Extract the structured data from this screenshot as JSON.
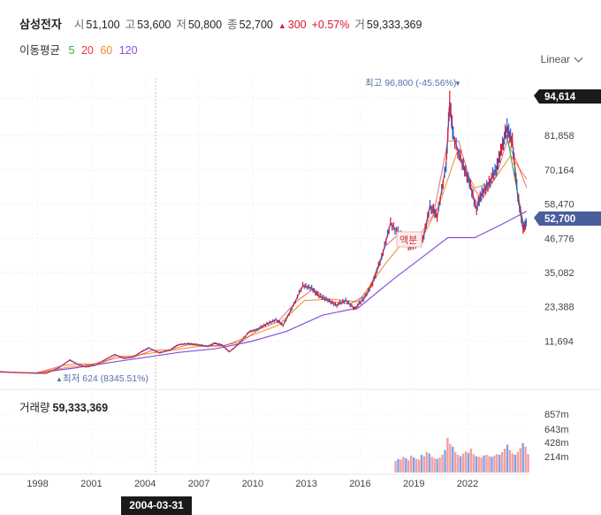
{
  "header": {
    "title": "삼성전자",
    "open_label": "시",
    "open_value": "51,100",
    "high_label": "고",
    "high_value": "53,600",
    "low_label": "저",
    "low_value": "50,800",
    "close_label": "종",
    "close_value": "52,700",
    "change_value": "300",
    "change_pct": "+0.57%",
    "volume_label": "거",
    "volume_value": "59,333,369"
  },
  "moving_average": {
    "title": "이동평균",
    "periods": [
      {
        "label": "5",
        "color": "#2fae4a"
      },
      {
        "label": "20",
        "color": "#e8383d"
      },
      {
        "label": "60",
        "color": "#f08a24"
      },
      {
        "label": "120",
        "color": "#8a4fe0"
      }
    ]
  },
  "scale_button": {
    "label": "Linear"
  },
  "annotations": {
    "max_label": "최고 96,800 (-45.56%)",
    "min_label": "최저 624 (8345.51%)",
    "event_label": "액분"
  },
  "price_tags": {
    "top": "94,614",
    "current": "52,700"
  },
  "volume_panel": {
    "label": "거래량",
    "value": "59,333,369"
  },
  "crosshair_date": "2004-03-31",
  "colors": {
    "up": "#e0142b",
    "down": "#1f63d6",
    "accent_tag": "#4a5e9c",
    "dark_tag": "#1a1a1a"
  },
  "chart_data": {
    "type": "line",
    "price_axis": {
      "ticks": [
        "81,858",
        "70,164",
        "58,470",
        "46,776",
        "35,082",
        "23,388",
        "11,694"
      ],
      "ylim": [
        0,
        100000
      ]
    },
    "volume_axis": {
      "ticks": [
        "857m",
        "643m",
        "428m",
        "214m"
      ]
    },
    "x_ticks": [
      "1998",
      "2001",
      "2004",
      "2007",
      "2010",
      "2013",
      "2016",
      "2019",
      "2022"
    ],
    "x_range": [
      1996.0,
      2025.6
    ],
    "series": [
      {
        "key": "price",
        "points": [
          [
            1996.0,
            1200
          ],
          [
            1997.0,
            900
          ],
          [
            1998.0,
            640
          ],
          [
            1998.6,
            700
          ],
          [
            1999.3,
            2600
          ],
          [
            1999.9,
            5200
          ],
          [
            2000.3,
            3800
          ],
          [
            2000.8,
            2800
          ],
          [
            2001.3,
            3400
          ],
          [
            2001.9,
            5400
          ],
          [
            2002.4,
            7100
          ],
          [
            2002.9,
            5700
          ],
          [
            2003.4,
            6100
          ],
          [
            2003.9,
            8000
          ],
          [
            2004.3,
            9300
          ],
          [
            2004.9,
            7600
          ],
          [
            2005.5,
            8600
          ],
          [
            2005.9,
            10300
          ],
          [
            2006.5,
            10800
          ],
          [
            2007.0,
            10500
          ],
          [
            2007.6,
            9800
          ],
          [
            2008.0,
            11000
          ],
          [
            2008.4,
            10200
          ],
          [
            2008.8,
            8000
          ],
          [
            2009.3,
            10500
          ],
          [
            2009.9,
            14800
          ],
          [
            2010.4,
            15800
          ],
          [
            2010.9,
            17500
          ],
          [
            2011.4,
            19000
          ],
          [
            2011.8,
            17000
          ],
          [
            2012.3,
            23000
          ],
          [
            2012.9,
            30500
          ],
          [
            2013.4,
            29800
          ],
          [
            2013.8,
            27000
          ],
          [
            2014.3,
            25600
          ],
          [
            2014.8,
            24000
          ],
          [
            2015.3,
            25500
          ],
          [
            2015.8,
            22800
          ],
          [
            2016.3,
            26000
          ],
          [
            2016.8,
            31500
          ],
          [
            2017.3,
            40000
          ],
          [
            2017.8,
            52000
          ],
          [
            2018.3,
            48000
          ],
          [
            2018.8,
            44000
          ],
          [
            2019.2,
            45000
          ],
          [
            2019.6,
            46000
          ],
          [
            2020.0,
            58000
          ],
          [
            2020.4,
            54000
          ],
          [
            2020.9,
            72000
          ],
          [
            2021.1,
            93000
          ],
          [
            2021.3,
            82000
          ],
          [
            2021.8,
            72000
          ],
          [
            2022.2,
            66000
          ],
          [
            2022.6,
            57000
          ],
          [
            2022.9,
            62000
          ],
          [
            2023.3,
            66000
          ],
          [
            2023.7,
            70000
          ],
          [
            2024.0,
            78000
          ],
          [
            2024.3,
            84000
          ],
          [
            2024.6,
            80000
          ],
          [
            2024.9,
            61000
          ],
          [
            2025.2,
            50000
          ],
          [
            2025.4,
            52700
          ]
        ]
      },
      {
        "key": "ma5",
        "points": [
          [
            2024.3,
            82000
          ],
          [
            2024.6,
            72000
          ],
          [
            2024.9,
            62000
          ],
          [
            2025.2,
            52000
          ],
          [
            2025.4,
            51500
          ]
        ]
      },
      {
        "key": "ma20",
        "points": [
          [
            1996.0,
            1150
          ],
          [
            1998.0,
            700
          ],
          [
            1999.5,
            3300
          ],
          [
            2000.5,
            3900
          ],
          [
            2001.5,
            3600
          ],
          [
            2002.5,
            6600
          ],
          [
            2003.5,
            6200
          ],
          [
            2004.5,
            8500
          ],
          [
            2005.5,
            8700
          ],
          [
            2006.5,
            10400
          ],
          [
            2007.5,
            10000
          ],
          [
            2008.5,
            10200
          ],
          [
            2009.5,
            11500
          ],
          [
            2010.5,
            15800
          ],
          [
            2011.5,
            18200
          ],
          [
            2012.5,
            25000
          ],
          [
            2013.5,
            29500
          ],
          [
            2014.5,
            25200
          ],
          [
            2015.5,
            24300
          ],
          [
            2016.5,
            27500
          ],
          [
            2017.5,
            44000
          ],
          [
            2018.3,
            48500
          ],
          [
            2019.2,
            45500
          ],
          [
            2020.2,
            55000
          ],
          [
            2021.0,
            80000
          ],
          [
            2021.6,
            80000
          ],
          [
            2022.3,
            65000
          ],
          [
            2022.9,
            60000
          ],
          [
            2023.7,
            68000
          ],
          [
            2024.3,
            80000
          ],
          [
            2024.9,
            72000
          ],
          [
            2025.4,
            64000
          ]
        ]
      },
      {
        "key": "ma60",
        "points": [
          [
            1996.0,
            1100
          ],
          [
            1998.0,
            800
          ],
          [
            1999.8,
            2700
          ],
          [
            2001.0,
            3600
          ],
          [
            2002.5,
            5800
          ],
          [
            2004.0,
            7200
          ],
          [
            2005.5,
            8400
          ],
          [
            2007.0,
            9800
          ],
          [
            2008.5,
            10000
          ],
          [
            2010.0,
            13500
          ],
          [
            2011.5,
            17000
          ],
          [
            2013.0,
            25500
          ],
          [
            2014.5,
            26000
          ],
          [
            2016.0,
            25000
          ],
          [
            2017.5,
            38000
          ],
          [
            2018.5,
            45500
          ],
          [
            2019.5,
            46000
          ],
          [
            2020.5,
            58000
          ],
          [
            2021.5,
            76000
          ],
          [
            2022.5,
            64000
          ],
          [
            2023.5,
            66000
          ],
          [
            2024.5,
            75000
          ],
          [
            2025.4,
            67000
          ]
        ]
      },
      {
        "key": "ma120",
        "points": [
          [
            1996.0,
            1050
          ],
          [
            1998.0,
            800
          ],
          [
            2000.0,
            2300
          ],
          [
            2002.0,
            4200
          ],
          [
            2004.0,
            6000
          ],
          [
            2006.0,
            7800
          ],
          [
            2008.0,
            9000
          ],
          [
            2010.0,
            11500
          ],
          [
            2012.0,
            15000
          ],
          [
            2014.0,
            20500
          ],
          [
            2016.0,
            23000
          ],
          [
            2018.0,
            33000
          ],
          [
            2019.5,
            40000
          ],
          [
            2021.0,
            47000
          ],
          [
            2022.5,
            47000
          ],
          [
            2024.0,
            51500
          ],
          [
            2025.4,
            56000
          ]
        ]
      }
    ],
    "volume_bars": {
      "x_start": 2018.1,
      "x_end": 2025.5,
      "values": [
        170,
        200,
        190,
        230,
        210,
        180,
        250,
        220,
        200,
        190,
        260,
        240,
        300,
        280,
        230,
        210,
        200,
        220,
        260,
        330,
        510,
        420,
        380,
        300,
        260,
        240,
        280,
        310,
        290,
        350,
        270,
        240,
        230,
        220,
        250,
        260,
        240,
        230,
        250,
        270,
        260,
        300,
        350,
        410,
        330,
        280,
        260,
        300,
        360,
        430,
        380,
        270
      ]
    }
  }
}
